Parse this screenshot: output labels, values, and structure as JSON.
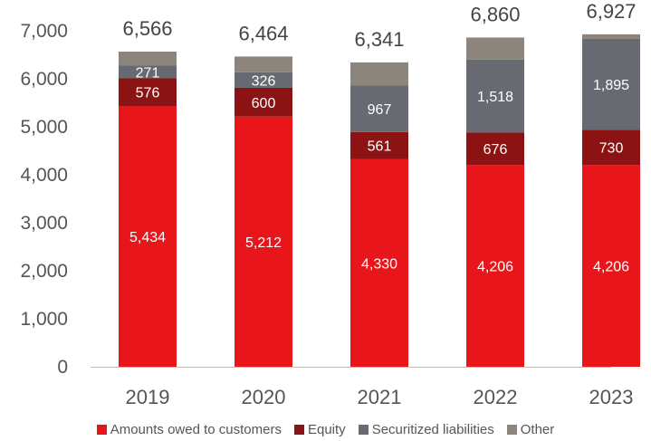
{
  "chart_data": {
    "type": "bar",
    "stacked": true,
    "title": "",
    "xlabel": "",
    "ylabel": "",
    "categories": [
      "2019",
      "2020",
      "2021",
      "2022",
      "2023"
    ],
    "ylim": [
      0,
      7000
    ],
    "yticks": [
      0,
      1000,
      2000,
      3000,
      4000,
      5000,
      6000,
      7000
    ],
    "ytick_labels": [
      "0",
      "1,000",
      "2,000",
      "3,000",
      "4,000",
      "5,000",
      "6,000",
      "7,000"
    ],
    "grid": false,
    "legend_position": "bottom",
    "totals": [
      6566,
      6464,
      6341,
      6860,
      6927
    ],
    "total_labels": [
      "6,566",
      "6,464",
      "6,341",
      "6,860",
      "6,927"
    ],
    "series": [
      {
        "name": "Amounts owed to customers",
        "color": "#e8161b",
        "values": [
          5434,
          5212,
          4330,
          4206,
          4206
        ],
        "labels": [
          "5,434",
          "5,212",
          "4,330",
          "4,206",
          "4,206"
        ]
      },
      {
        "name": "Equity",
        "color": "#8b1313",
        "values": [
          576,
          600,
          561,
          676,
          730
        ],
        "labels": [
          "576",
          "600",
          "561",
          "676",
          "730"
        ]
      },
      {
        "name": "Securitized liabilities",
        "color": "#676b71",
        "values": [
          271,
          326,
          967,
          1518,
          1895
        ],
        "labels": [
          "271",
          "326",
          "967",
          "1,518",
          "1,895"
        ]
      },
      {
        "name": "Other",
        "color": "#8c857c",
        "values": [
          285,
          326,
          483,
          460,
          96
        ],
        "labels": [
          "",
          "",
          "",
          "",
          ""
        ]
      }
    ]
  }
}
